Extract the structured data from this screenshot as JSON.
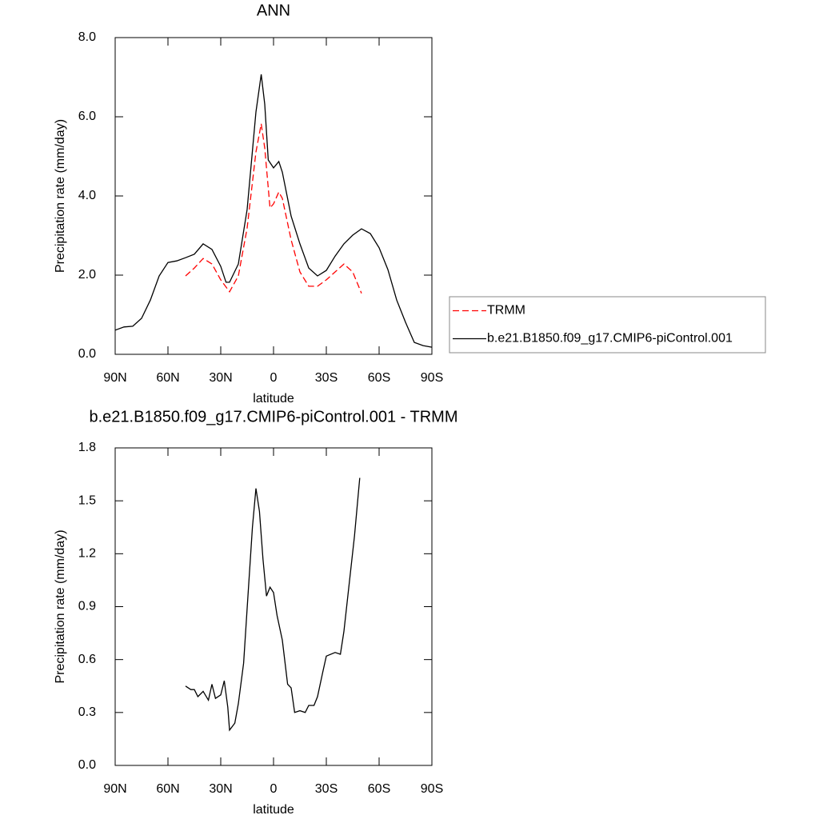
{
  "chart_data": [
    {
      "type": "line",
      "title": "ANN",
      "xlabel": "latitude",
      "ylabel": "Precipitation rate (mm/day)",
      "xlim": [
        90,
        -90
      ],
      "xticks": [
        {
          "value": 90,
          "label": "90N"
        },
        {
          "value": 60,
          "label": "60N"
        },
        {
          "value": 30,
          "label": "30N"
        },
        0,
        {
          "value": -30,
          "label": "30S"
        },
        {
          "value": -60,
          "label": "60S"
        },
        {
          "value": -90,
          "label": "90S"
        }
      ],
      "ylim": [
        0,
        8
      ],
      "yticks": [
        {
          "value": 0,
          "label": "0.0"
        },
        {
          "value": 2,
          "label": "2.0"
        },
        {
          "value": 4,
          "label": "4.0"
        },
        {
          "value": 6,
          "label": "6.0"
        },
        {
          "value": 8,
          "label": "8.0"
        }
      ],
      "legend": "right",
      "series": [
        {
          "name": "TRMM",
          "color": "#ff0000",
          "dashed": true,
          "x": [
            50,
            45,
            40,
            35,
            30,
            25,
            20,
            15,
            10,
            7,
            5,
            2,
            0,
            -3,
            -5,
            -10,
            -15,
            -20,
            -25,
            -30,
            -35,
            -40,
            -45,
            -50
          ],
          "values": [
            1.98,
            2.18,
            2.42,
            2.28,
            1.88,
            1.58,
            1.98,
            3.19,
            5.11,
            5.82,
            5.21,
            3.7,
            3.8,
            4.1,
            3.94,
            2.89,
            2.08,
            1.72,
            1.72,
            1.88,
            2.08,
            2.28,
            2.08,
            1.54
          ]
        },
        {
          "name": "b.e21.B1850.f09_g17.CMIP6-piControl.001",
          "color": "#000000",
          "dashed": false,
          "x": [
            90,
            85,
            80,
            75,
            70,
            65,
            60,
            55,
            50,
            45,
            40,
            35,
            30,
            27,
            25,
            20,
            15,
            10,
            7,
            5,
            3,
            0,
            -3,
            -5,
            -10,
            -15,
            -20,
            -25,
            -30,
            -35,
            -40,
            -45,
            -50,
            -55,
            -60,
            -65,
            -70,
            -75,
            -80,
            -85,
            -90
          ],
          "values": [
            0.61,
            0.69,
            0.71,
            0.91,
            1.37,
            1.98,
            2.32,
            2.36,
            2.44,
            2.53,
            2.79,
            2.65,
            2.22,
            1.82,
            1.82,
            2.28,
            3.66,
            6.12,
            7.07,
            6.32,
            4.91,
            4.71,
            4.87,
            4.6,
            3.49,
            2.79,
            2.18,
            1.98,
            2.12,
            2.48,
            2.79,
            3.01,
            3.17,
            3.05,
            2.69,
            2.14,
            1.37,
            0.81,
            0.3,
            0.22,
            0.18
          ]
        }
      ]
    },
    {
      "type": "line",
      "title": "b.e21.B1850.f09_g17.CMIP6-piControl.001 - TRMM",
      "xlabel": "latitude",
      "ylabel": "Precipitation rate (mm/day)",
      "xlim": [
        90,
        -90
      ],
      "xticks": [
        {
          "value": 90,
          "label": "90N"
        },
        {
          "value": 60,
          "label": "60N"
        },
        {
          "value": 30,
          "label": "30N"
        },
        0,
        {
          "value": -30,
          "label": "30S"
        },
        {
          "value": -60,
          "label": "60S"
        },
        {
          "value": -90,
          "label": "90S"
        }
      ],
      "ylim": [
        0,
        1.8
      ],
      "yticks": [
        {
          "value": 0,
          "label": "0.0"
        },
        0.3,
        0.6,
        0.9,
        1.2,
        1.5,
        1.8
      ],
      "series": [
        {
          "color": "#000000",
          "dashed": false,
          "x": [
            50,
            47,
            45,
            43,
            40,
            37,
            35,
            33,
            30,
            28,
            26,
            25,
            22,
            20,
            17,
            15,
            12,
            10,
            8,
            6,
            4,
            2,
            0,
            -2,
            -5,
            -8,
            -10,
            -12,
            -15,
            -18,
            -20,
            -23,
            -25,
            -28,
            -30,
            -35,
            -38,
            -40,
            -43,
            -46,
            -49
          ],
          "values": [
            0.45,
            0.43,
            0.43,
            0.39,
            0.42,
            0.37,
            0.46,
            0.38,
            0.4,
            0.48,
            0.33,
            0.2,
            0.24,
            0.35,
            0.58,
            0.89,
            1.35,
            1.57,
            1.44,
            1.17,
            0.96,
            1.01,
            0.98,
            0.85,
            0.71,
            0.46,
            0.44,
            0.3,
            0.31,
            0.3,
            0.34,
            0.34,
            0.39,
            0.53,
            0.62,
            0.64,
            0.63,
            0.76,
            1.03,
            1.3,
            1.63
          ]
        }
      ]
    }
  ]
}
